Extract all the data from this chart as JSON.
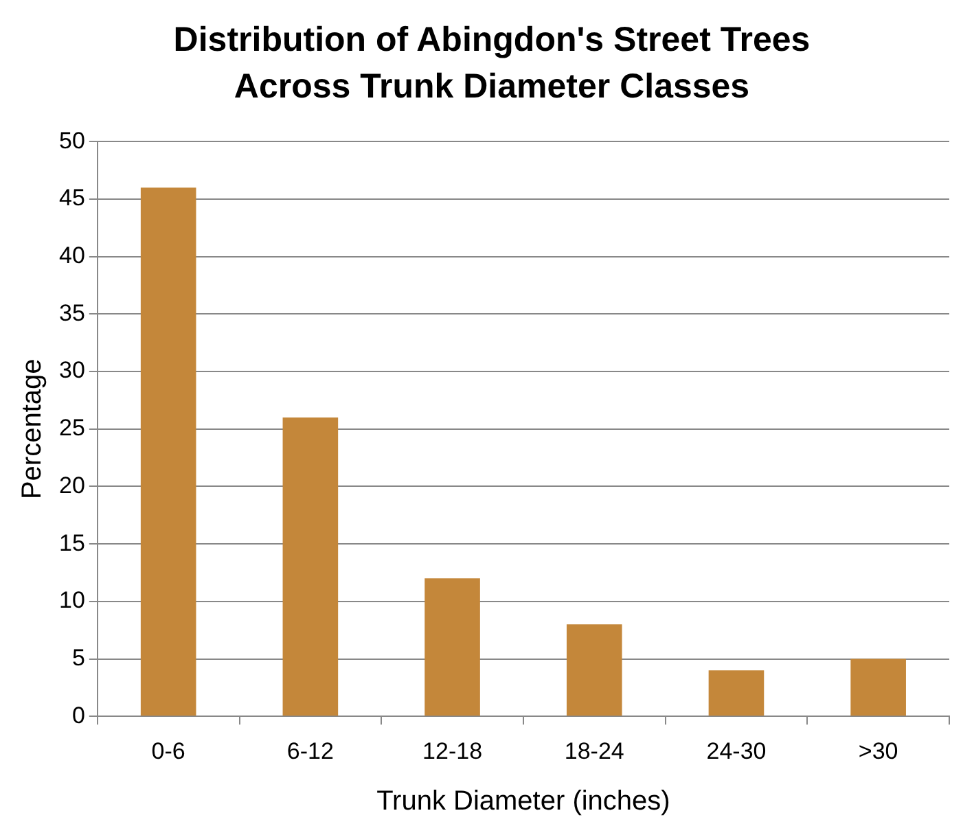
{
  "chart_data": {
    "type": "bar",
    "title": "Distribution of Abingdon's Street Trees Across Trunk Diameter Classes",
    "xlabel": "Trunk Diameter (inches)",
    "ylabel": "Percentage",
    "categories": [
      "0-6",
      "6-12",
      "12-18",
      "18-24",
      "24-30",
      ">30"
    ],
    "values": [
      46,
      26,
      12,
      8,
      4,
      5
    ],
    "color": "#c4873a",
    "ylim": [
      0,
      50
    ],
    "yticks": [
      0,
      5,
      10,
      15,
      20,
      25,
      30,
      35,
      40,
      45,
      50
    ],
    "grid": "y",
    "legend": false
  }
}
